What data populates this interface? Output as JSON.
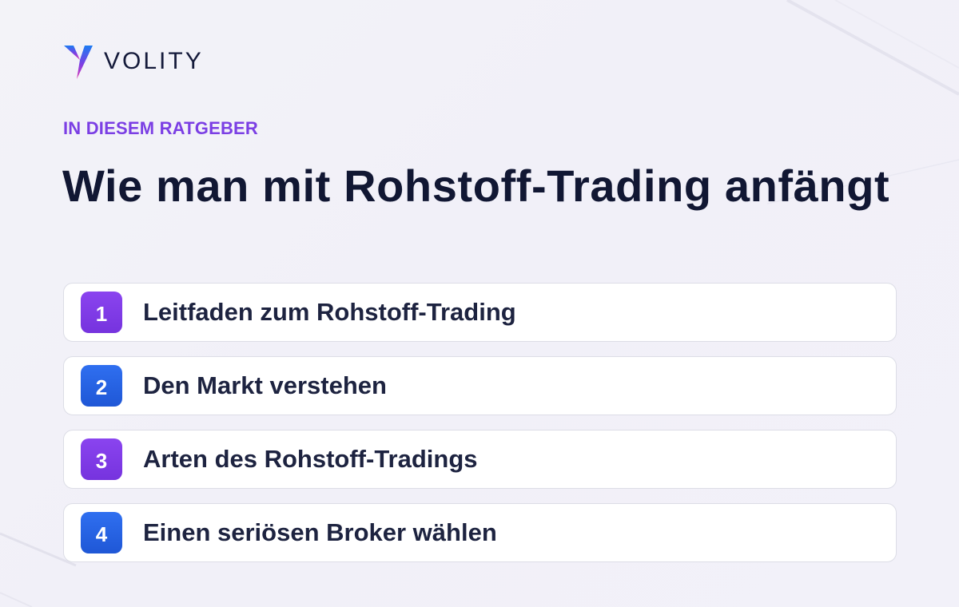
{
  "brand": {
    "name": "VOLITY",
    "accent_purple": "#7b3fe4",
    "accent_blue": "#2563eb",
    "text_dark": "#111733"
  },
  "header": {
    "eyebrow": "IN DIESEM RATGEBER",
    "title": "Wie man mit Rohstoff-Trading anfängt"
  },
  "toc": {
    "items": [
      {
        "number": "1",
        "label": "Leitfaden zum Rohstoff-Trading",
        "color": "purple"
      },
      {
        "number": "2",
        "label": "Den Markt verstehen",
        "color": "blue"
      },
      {
        "number": "3",
        "label": "Arten des Rohstoff-Tradings",
        "color": "purple"
      },
      {
        "number": "4",
        "label": "Einen seriösen Broker wählen",
        "color": "blue"
      }
    ]
  }
}
